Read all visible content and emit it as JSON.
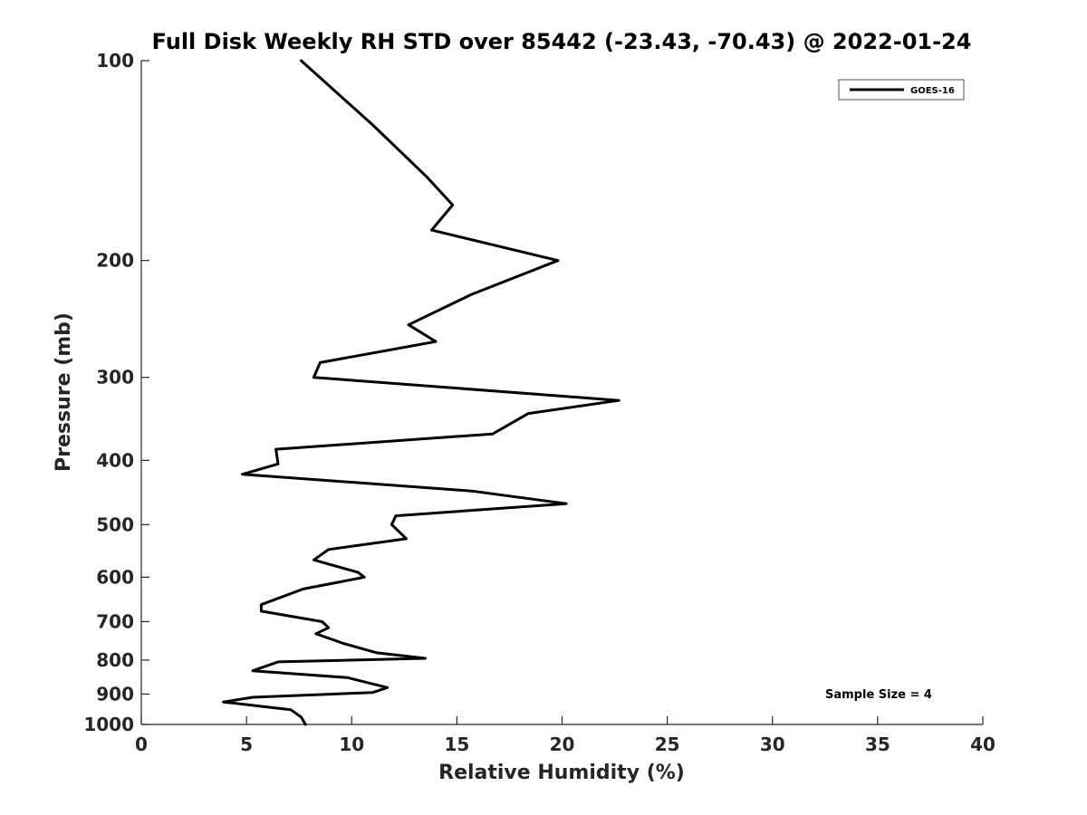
{
  "chart_data": {
    "type": "line",
    "title": "Full Disk Weekly RH STD over 85442 (-23.43, -70.43) @ 2022-01-24",
    "xlabel": "Relative Humidity (%)",
    "ylabel": "Pressure (mb)",
    "xlim": [
      0,
      40
    ],
    "ylim": [
      100,
      1000
    ],
    "yscale": "log",
    "yreversed": true,
    "grid": false,
    "x_ticks": [
      0,
      5,
      10,
      15,
      20,
      25,
      30,
      35,
      40
    ],
    "x_tick_labels": [
      "0",
      "5",
      "10",
      "15",
      "20",
      "25",
      "30",
      "35",
      "40"
    ],
    "y_ticks": [
      100,
      200,
      300,
      400,
      500,
      600,
      700,
      800,
      900,
      1000
    ],
    "y_tick_labels": [
      "100",
      "200",
      "300",
      "400",
      "500",
      "600",
      "700",
      "800",
      "900",
      "1000"
    ],
    "legend": {
      "location": "top-right",
      "entries": [
        "GOES-16"
      ]
    },
    "annotation": "Sample Size = 4",
    "series": [
      {
        "name": "GOES-16",
        "color": "#000000",
        "points": [
          [
            7.6,
            100
          ],
          [
            11.0,
            125
          ],
          [
            13.6,
            150
          ],
          [
            14.8,
            165
          ],
          [
            13.8,
            180
          ],
          [
            19.8,
            200
          ],
          [
            15.7,
            225
          ],
          [
            12.7,
            250
          ],
          [
            14.0,
            265
          ],
          [
            8.5,
            285
          ],
          [
            8.2,
            300
          ],
          [
            22.7,
            325
          ],
          [
            18.4,
            340
          ],
          [
            16.7,
            365
          ],
          [
            6.4,
            385
          ],
          [
            6.5,
            405
          ],
          [
            4.8,
            420
          ],
          [
            15.7,
            445
          ],
          [
            20.2,
            465
          ],
          [
            12.1,
            485
          ],
          [
            11.9,
            500
          ],
          [
            12.6,
            525
          ],
          [
            8.9,
            545
          ],
          [
            8.2,
            565
          ],
          [
            10.3,
            590
          ],
          [
            10.6,
            600
          ],
          [
            7.7,
            625
          ],
          [
            5.7,
            660
          ],
          [
            5.7,
            675
          ],
          [
            8.6,
            700
          ],
          [
            8.9,
            715
          ],
          [
            8.3,
            730
          ],
          [
            9.6,
            755
          ],
          [
            11.2,
            780
          ],
          [
            13.5,
            795
          ],
          [
            6.5,
            805
          ],
          [
            5.3,
            830
          ],
          [
            9.8,
            850
          ],
          [
            11.7,
            880
          ],
          [
            11.0,
            895
          ],
          [
            5.3,
            910
          ],
          [
            3.9,
            925
          ],
          [
            7.1,
            950
          ],
          [
            7.6,
            975
          ],
          [
            7.8,
            1000
          ]
        ]
      }
    ]
  }
}
